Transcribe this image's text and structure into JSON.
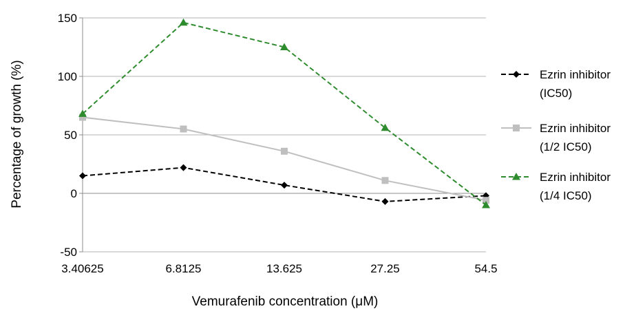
{
  "chart_data": {
    "type": "line",
    "title": "",
    "xlabel": "Vemurafenib concentration (μM)",
    "ylabel": "Percentage of growth (%)",
    "categories": [
      "3.40625",
      "6.8125",
      "13.625",
      "27.25",
      "54.5"
    ],
    "ylim": [
      -50,
      150
    ],
    "yticks": [
      "-50",
      "0",
      "50",
      "100",
      "150"
    ],
    "grid": true,
    "legend_position": "right",
    "series": [
      {
        "name_lines": [
          "Ezrin inhibitor",
          "(IC50)"
        ],
        "values": [
          15,
          22,
          7,
          -7,
          -2
        ],
        "color": "#000000",
        "dash": "dashed",
        "marker": "diamond"
      },
      {
        "name_lines": [
          "Ezrin inhibitor",
          "(1/2 IC50)"
        ],
        "values": [
          65,
          55,
          36,
          11,
          -6
        ],
        "color": "#bfbfbf",
        "dash": "solid",
        "marker": "square"
      },
      {
        "name_lines": [
          "Ezrin inhibitor",
          "(1/4 IC50)"
        ],
        "values": [
          68,
          146,
          125,
          56,
          -10
        ],
        "color": "#2e8b2e",
        "dash": "dashed",
        "marker": "triangle"
      }
    ]
  }
}
